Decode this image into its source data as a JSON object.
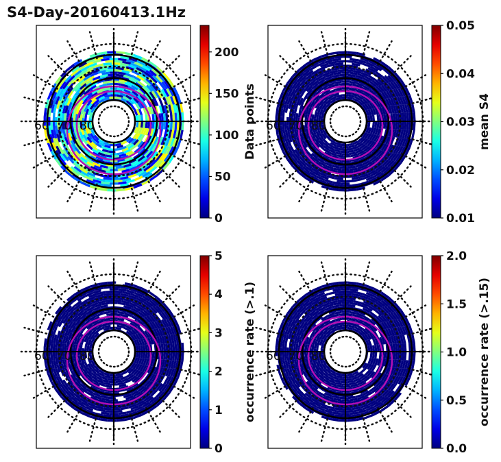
{
  "title": "S4-Day-20160413.1Hz",
  "chart_data": [
    {
      "type": "heatmap",
      "projection": "polar",
      "colormap": "jet",
      "colorbar_label": "Data points",
      "clim": [
        0,
        232
      ],
      "colorbar_ticks": [
        "0",
        "50",
        "100",
        "150",
        "200"
      ],
      "colorbar_tick_values": [
        0,
        50,
        100,
        150,
        200
      ],
      "lat_labels": [
        "60",
        "70",
        "80"
      ],
      "typical_range": [
        0,
        150
      ]
    },
    {
      "type": "heatmap",
      "projection": "polar",
      "colormap": "jet",
      "colorbar_label": "mean S4",
      "clim": [
        0.01,
        0.05
      ],
      "colorbar_ticks": [
        "0.01",
        "0.02",
        "0.03",
        "0.04",
        "0.05"
      ],
      "colorbar_tick_values": [
        0.01,
        0.02,
        0.03,
        0.04,
        0.05
      ],
      "lat_labels": [
        "60",
        "70",
        "80"
      ],
      "typical_range": [
        0.01,
        0.012
      ]
    },
    {
      "type": "heatmap",
      "projection": "polar",
      "colormap": "jet",
      "colorbar_label": "occurrence rate (>.1)",
      "clim": [
        0,
        5
      ],
      "colorbar_ticks": [
        "0",
        "1",
        "2",
        "3",
        "4",
        "5"
      ],
      "colorbar_tick_values": [
        0,
        1,
        2,
        3,
        4,
        5
      ],
      "lat_labels": [
        "60",
        "70",
        "80"
      ],
      "typical_range": [
        0,
        0.1
      ]
    },
    {
      "type": "heatmap",
      "projection": "polar",
      "colormap": "jet",
      "colorbar_label": "occurrence rate (>.15)",
      "clim": [
        0,
        2
      ],
      "colorbar_ticks": [
        "0.0",
        "0.5",
        "1.0",
        "1.5",
        "2.0"
      ],
      "colorbar_tick_values": [
        0,
        0.5,
        1,
        1.5,
        2
      ],
      "lat_labels": [
        "60",
        "70",
        "80"
      ],
      "typical_range": [
        0,
        0.02
      ]
    }
  ]
}
